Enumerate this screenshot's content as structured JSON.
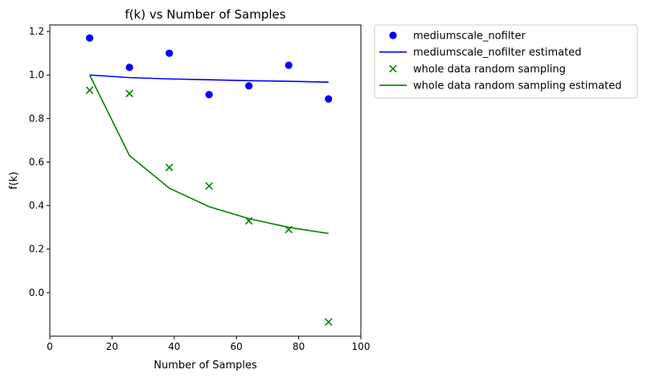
{
  "chart_data": {
    "type": "scatter",
    "title": "f(k) vs Number of Samples",
    "xlabel": "Number of Samples",
    "ylabel": "f(k)",
    "xlim": [
      0,
      100
    ],
    "ylim": [
      -0.2,
      1.23
    ],
    "xticks": [
      0,
      20,
      40,
      60,
      80,
      100
    ],
    "yticks": [
      0.0,
      0.2,
      0.4,
      0.6,
      0.8,
      1.0,
      1.2
    ],
    "ytick_labels": [
      "0.0",
      "0.2",
      "0.4",
      "0.6",
      "0.8",
      "1.0",
      "1.2"
    ],
    "grid": false,
    "legend_position": "outside upper right",
    "series": [
      {
        "name": "mediumscale_nofilter",
        "kind": "scatter",
        "marker": "circle",
        "color": "#0000ff",
        "x": [
          12.8,
          25.6,
          38.4,
          51.2,
          64.0,
          76.8,
          89.6
        ],
        "y": [
          1.17,
          1.035,
          1.1,
          0.91,
          0.95,
          1.045,
          0.89
        ]
      },
      {
        "name": "mediumscale_nofilter estimated",
        "kind": "line",
        "color": "#0000ff",
        "x": [
          12.8,
          25.6,
          38.4,
          51.2,
          64.0,
          76.8,
          89.6
        ],
        "y": [
          1.0,
          0.988,
          0.982,
          0.978,
          0.974,
          0.971,
          0.967
        ]
      },
      {
        "name": "whole data random sampling",
        "kind": "scatter",
        "marker": "x",
        "color": "#008000",
        "x": [
          12.8,
          25.6,
          38.4,
          51.2,
          64.0,
          76.8,
          89.6
        ],
        "y": [
          0.93,
          0.915,
          0.575,
          0.49,
          0.33,
          0.29,
          -0.135
        ]
      },
      {
        "name": "whole data random sampling estimated",
        "kind": "line",
        "color": "#008000",
        "x": [
          12.8,
          25.6,
          38.4,
          51.2,
          64.0,
          76.8,
          89.6
        ],
        "y": [
          1.0,
          0.63,
          0.48,
          0.395,
          0.34,
          0.3,
          0.272
        ]
      }
    ]
  }
}
